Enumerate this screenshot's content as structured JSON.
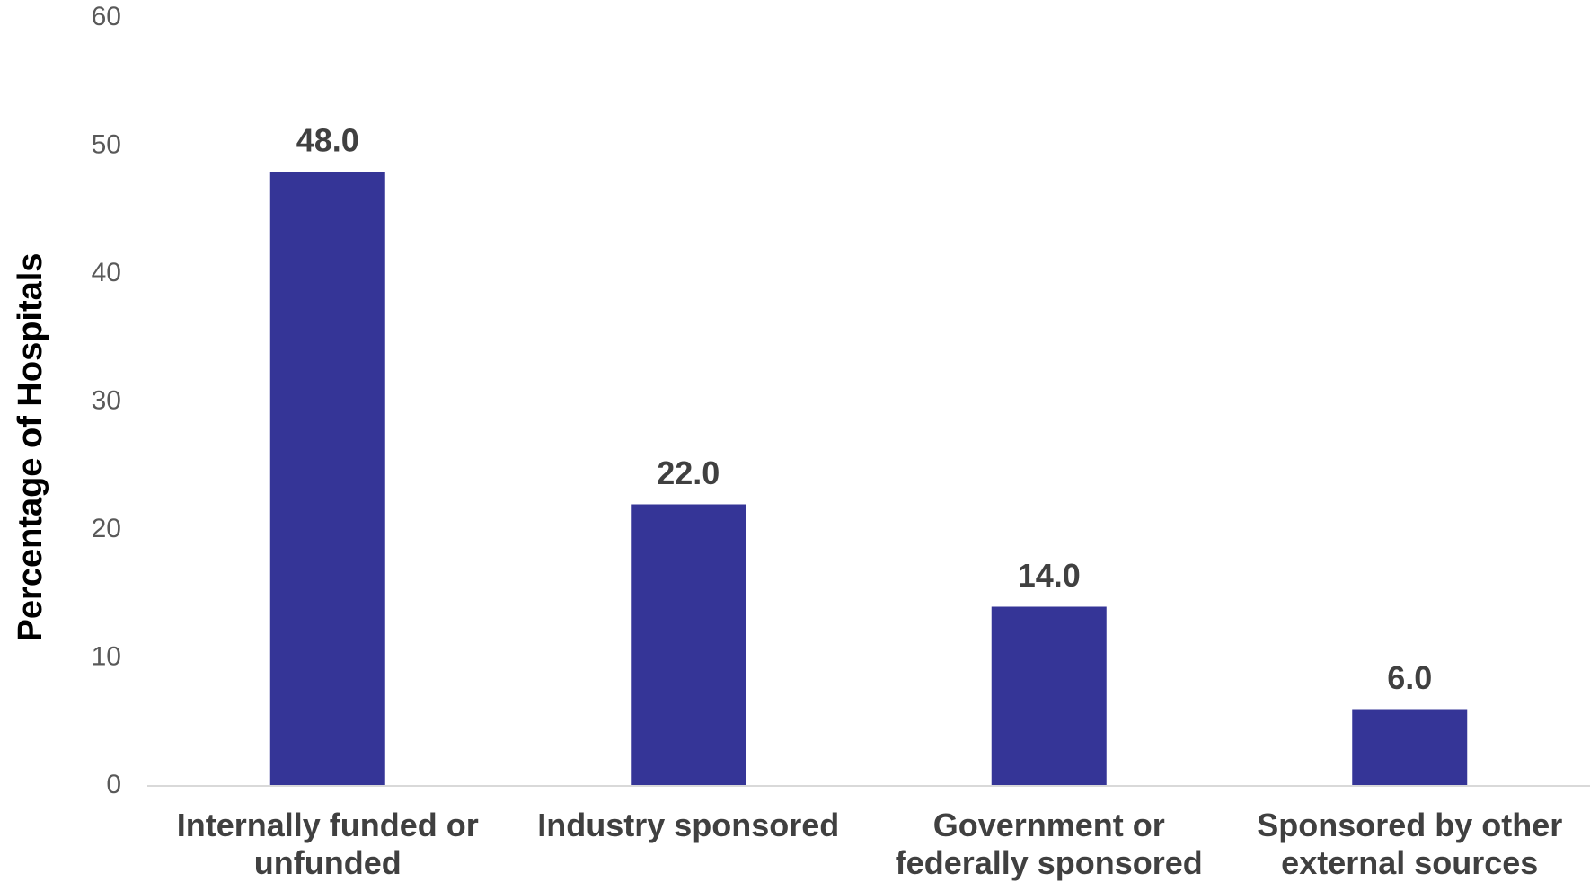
{
  "chart_data": {
    "type": "bar",
    "y_label": "Percentage of Hospitals",
    "categories": [
      "Internally funded or unfunded",
      "Industry sponsored",
      "Government or federally sponsored",
      "Sponsored by other external sources"
    ],
    "values": [
      48,
      22,
      14,
      6
    ],
    "value_labels": [
      "48.0",
      "22.0",
      "14.0",
      "6.0"
    ],
    "color": "#353597",
    "ylim": [
      0,
      60
    ],
    "yticks": [
      0,
      10,
      20,
      30,
      40,
      50,
      60
    ],
    "grid": false
  }
}
